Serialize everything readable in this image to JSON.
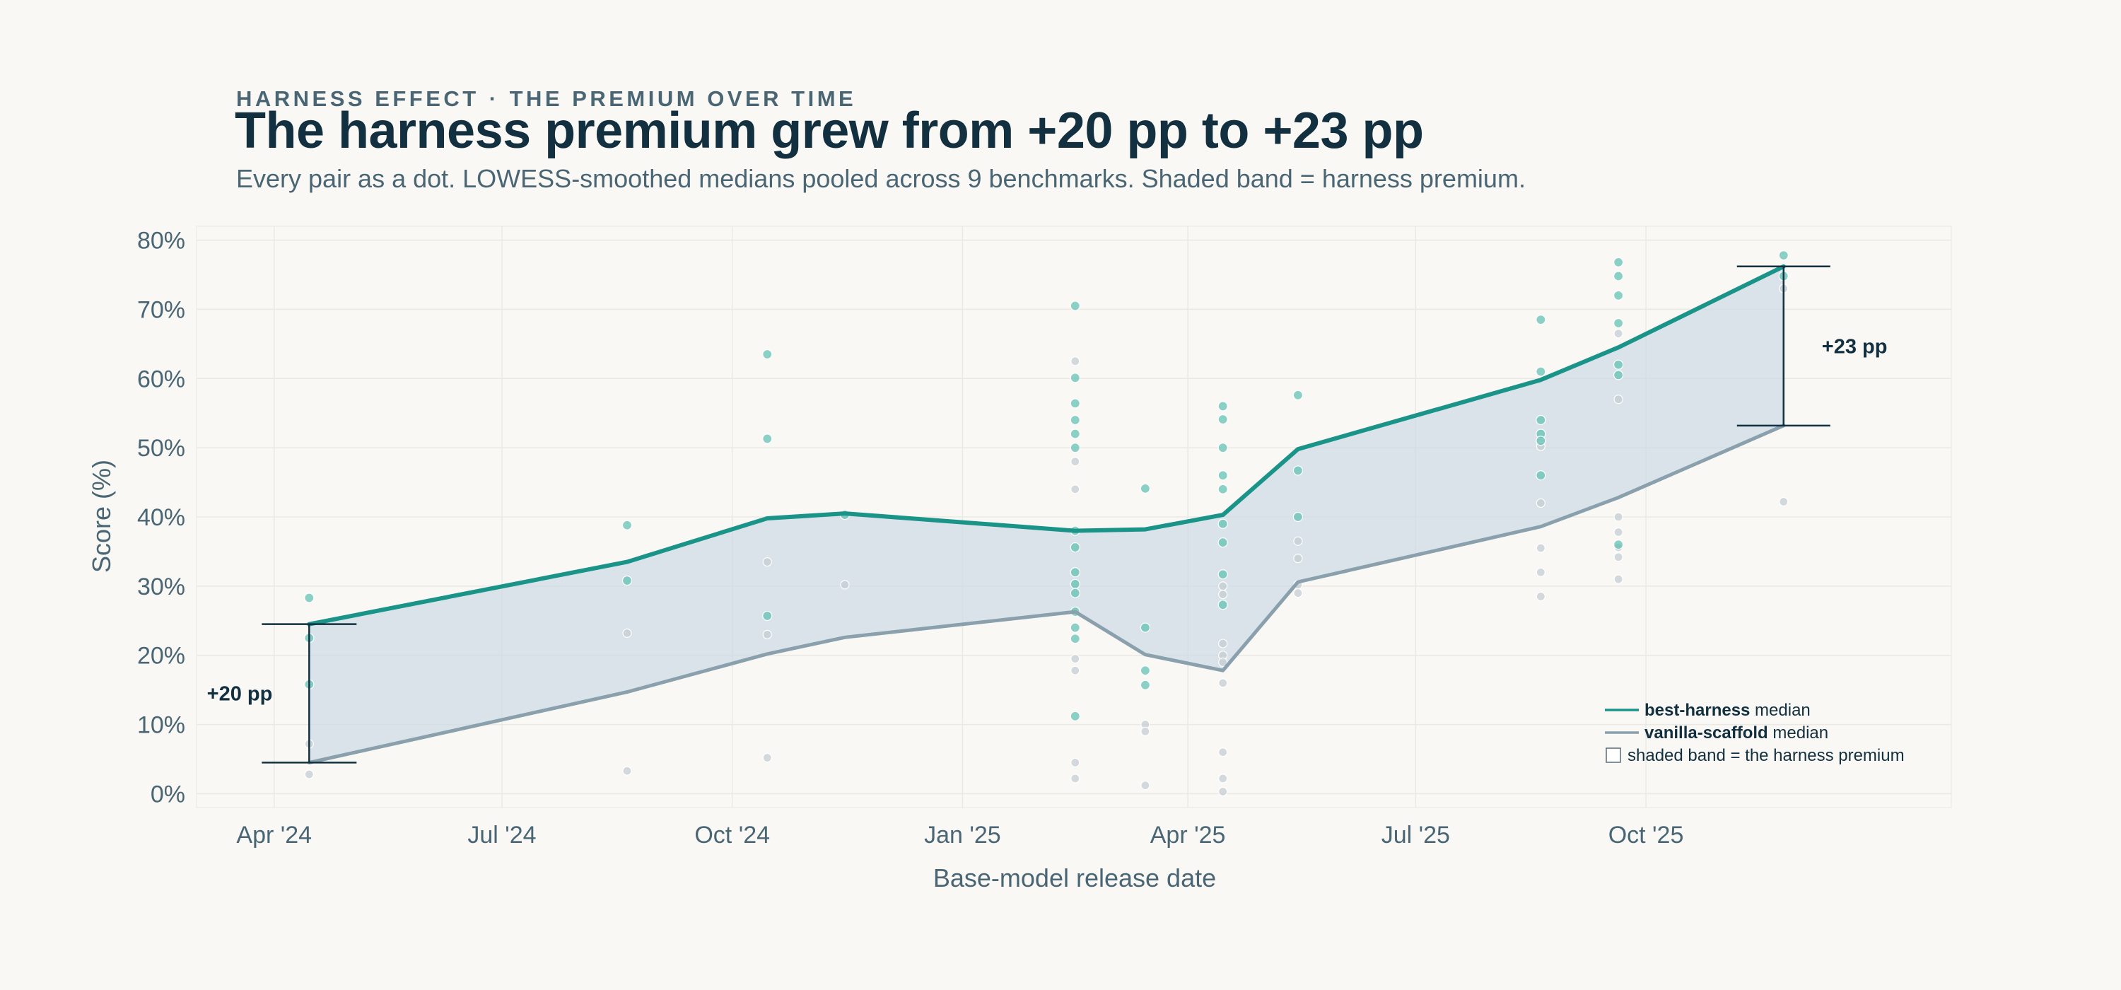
{
  "header": {
    "kicker_left": "HARNESS EFFECT",
    "kicker_sep": "·",
    "kicker_right": "THE PREMIUM OVER TIME",
    "title": "The harness premium grew from +20 pp to +23 pp",
    "subtitle": "Every pair as a dot. LOWESS-smoothed medians pooled across 9 benchmarks. Shaded band = harness premium."
  },
  "chart_data": {
    "type": "line",
    "xlabel": "Base-model release date",
    "ylabel": "Score (%)",
    "xlim": [
      "2024-03-01",
      "2026-01-31"
    ],
    "ylim": [
      -2,
      82
    ],
    "x_ticks": [
      {
        "date": "2024-04-01",
        "label": "Apr '24"
      },
      {
        "date": "2024-07-01",
        "label": "Jul '24"
      },
      {
        "date": "2024-10-01",
        "label": "Oct '24"
      },
      {
        "date": "2025-01-01",
        "label": "Jan '25"
      },
      {
        "date": "2025-04-01",
        "label": "Apr '25"
      },
      {
        "date": "2025-07-01",
        "label": "Jul '25"
      },
      {
        "date": "2025-10-01",
        "label": "Oct '25"
      }
    ],
    "y_ticks": [
      {
        "value": 0,
        "label": "0%"
      },
      {
        "value": 10,
        "label": "10%"
      },
      {
        "value": 20,
        "label": "20%"
      },
      {
        "value": 30,
        "label": "30%"
      },
      {
        "value": 40,
        "label": "40%"
      },
      {
        "value": 50,
        "label": "50%"
      },
      {
        "value": 60,
        "label": "60%"
      },
      {
        "value": 70,
        "label": "70%"
      },
      {
        "value": 80,
        "label": "80%"
      }
    ],
    "grid": true,
    "legend_position": "bottom-right",
    "series": [
      {
        "name": "best-harness median",
        "color": "#1a9488",
        "x": [
          "2024-04-15",
          "2024-08-20",
          "2024-10-15",
          "2024-11-15",
          "2025-02-15",
          "2025-03-15",
          "2025-04-15",
          "2025-05-15",
          "2025-08-20",
          "2025-09-20",
          "2025-11-25"
        ],
        "y": [
          24.5,
          33.5,
          39.8,
          40.5,
          38.0,
          38.2,
          40.3,
          49.8,
          59.8,
          64.5,
          76.2
        ]
      },
      {
        "name": "vanilla-scaffold median",
        "color": "#8aa0ad",
        "x": [
          "2024-04-15",
          "2024-08-20",
          "2024-10-15",
          "2024-11-15",
          "2025-02-15",
          "2025-03-15",
          "2025-04-15",
          "2025-05-15",
          "2025-08-20",
          "2025-09-20",
          "2025-11-25"
        ],
        "y": [
          4.5,
          14.7,
          20.2,
          22.6,
          26.3,
          20.1,
          17.8,
          30.6,
          38.6,
          42.8,
          53.2
        ]
      }
    ],
    "scatter_harness": {
      "color": "#5bbfb0",
      "points": [
        [
          "2024-04-15",
          28.3
        ],
        [
          "2024-04-15",
          22.5
        ],
        [
          "2024-04-15",
          15.8
        ],
        [
          "2024-08-20",
          38.8
        ],
        [
          "2024-08-20",
          30.8
        ],
        [
          "2024-10-15",
          63.5
        ],
        [
          "2024-10-15",
          51.3
        ],
        [
          "2024-10-15",
          25.7
        ],
        [
          "2024-11-15",
          40.3
        ],
        [
          "2025-02-15",
          70.5
        ],
        [
          "2025-02-15",
          60.1
        ],
        [
          "2025-02-15",
          56.4
        ],
        [
          "2025-02-15",
          54.0
        ],
        [
          "2025-02-15",
          52.0
        ],
        [
          "2025-02-15",
          50.0
        ],
        [
          "2025-02-15",
          38.0
        ],
        [
          "2025-02-15",
          35.6
        ],
        [
          "2025-02-15",
          32.0
        ],
        [
          "2025-02-15",
          30.3
        ],
        [
          "2025-02-15",
          29.0
        ],
        [
          "2025-02-15",
          26.3
        ],
        [
          "2025-02-15",
          24.0
        ],
        [
          "2025-02-15",
          22.4
        ],
        [
          "2025-02-15",
          11.2
        ],
        [
          "2025-03-15",
          44.1
        ],
        [
          "2025-03-15",
          24.0
        ],
        [
          "2025-03-15",
          17.8
        ],
        [
          "2025-03-15",
          15.7
        ],
        [
          "2025-04-15",
          56.0
        ],
        [
          "2025-04-15",
          54.1
        ],
        [
          "2025-04-15",
          50.0
        ],
        [
          "2025-04-15",
          46.0
        ],
        [
          "2025-04-15",
          44.0
        ],
        [
          "2025-04-15",
          39.0
        ],
        [
          "2025-04-15",
          36.3
        ],
        [
          "2025-04-15",
          31.7
        ],
        [
          "2025-04-15",
          27.3
        ],
        [
          "2025-05-15",
          57.6
        ],
        [
          "2025-05-15",
          46.7
        ],
        [
          "2025-05-15",
          40.0
        ],
        [
          "2025-08-20",
          68.5
        ],
        [
          "2025-08-20",
          61.0
        ],
        [
          "2025-08-20",
          54.0
        ],
        [
          "2025-08-20",
          52.0
        ],
        [
          "2025-08-20",
          51.0
        ],
        [
          "2025-08-20",
          46.0
        ],
        [
          "2025-09-20",
          76.8
        ],
        [
          "2025-09-20",
          74.8
        ],
        [
          "2025-09-20",
          72.0
        ],
        [
          "2025-09-20",
          68.0
        ],
        [
          "2025-09-20",
          62.0
        ],
        [
          "2025-09-20",
          60.5
        ],
        [
          "2025-09-20",
          36.0
        ],
        [
          "2025-11-25",
          77.8
        ],
        [
          "2025-11-25",
          74.8
        ]
      ]
    },
    "scatter_vanilla": {
      "color": "#c4cdd2",
      "points": [
        [
          "2024-04-15",
          7.2
        ],
        [
          "2024-04-15",
          2.8
        ],
        [
          "2024-08-20",
          23.2
        ],
        [
          "2024-08-20",
          3.3
        ],
        [
          "2024-10-15",
          33.5
        ],
        [
          "2024-10-15",
          23.0
        ],
        [
          "2024-10-15",
          5.2
        ],
        [
          "2024-11-15",
          30.2
        ],
        [
          "2025-02-15",
          62.5
        ],
        [
          "2025-02-15",
          48.0
        ],
        [
          "2025-02-15",
          44.0
        ],
        [
          "2025-02-15",
          19.5
        ],
        [
          "2025-02-15",
          17.8
        ],
        [
          "2025-02-15",
          4.5
        ],
        [
          "2025-02-15",
          2.2
        ],
        [
          "2025-03-15",
          10.0
        ],
        [
          "2025-03-15",
          9.0
        ],
        [
          "2025-03-15",
          1.2
        ],
        [
          "2025-04-15",
          30.0
        ],
        [
          "2025-04-15",
          28.8
        ],
        [
          "2025-04-15",
          21.7
        ],
        [
          "2025-04-15",
          20.0
        ],
        [
          "2025-04-15",
          19.0
        ],
        [
          "2025-04-15",
          16.0
        ],
        [
          "2025-04-15",
          6.0
        ],
        [
          "2025-04-15",
          2.2
        ],
        [
          "2025-04-15",
          0.3
        ],
        [
          "2025-05-15",
          36.5
        ],
        [
          "2025-05-15",
          34.0
        ],
        [
          "2025-05-15",
          30.2
        ],
        [
          "2025-05-15",
          29.0
        ],
        [
          "2025-08-20",
          50.2
        ],
        [
          "2025-08-20",
          42.0
        ],
        [
          "2025-08-20",
          35.5
        ],
        [
          "2025-08-20",
          32.0
        ],
        [
          "2025-08-20",
          28.5
        ],
        [
          "2025-09-20",
          66.5
        ],
        [
          "2025-09-20",
          57.0
        ],
        [
          "2025-09-20",
          40.0
        ],
        [
          "2025-09-20",
          37.8
        ],
        [
          "2025-09-20",
          35.6
        ],
        [
          "2025-09-20",
          34.2
        ],
        [
          "2025-09-20",
          31.0
        ],
        [
          "2025-11-25",
          73.0
        ],
        [
          "2025-11-25",
          42.2
        ]
      ]
    },
    "band": {
      "color": "#c6d6e3",
      "label": "shaded band = the harness premium"
    },
    "annotations": [
      {
        "label": "+20 pp",
        "date": "2024-04-15",
        "low": 4.5,
        "high": 24.5,
        "side": "left"
      },
      {
        "label": "+23 pp",
        "date": "2025-11-25",
        "low": 53.2,
        "high": 76.2,
        "side": "right"
      }
    ],
    "legend": [
      {
        "bold": "best-harness",
        "rest": " median",
        "type": "line",
        "color": "#1a9488"
      },
      {
        "bold": "vanilla-scaffold",
        "rest": " median",
        "type": "line",
        "color": "#8aa0ad"
      },
      {
        "bold": "",
        "rest": "shaded band = the harness premium",
        "type": "box"
      }
    ]
  }
}
